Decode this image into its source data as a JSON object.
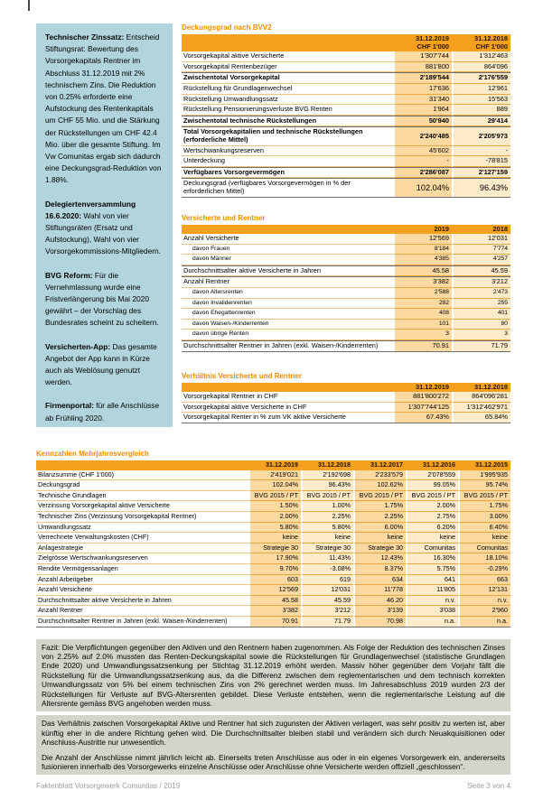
{
  "page": {
    "footer_left": "Faktenblatt Vorsorgewerk Comunitas / 2019",
    "footer_right": "Seite 3 von 4"
  },
  "colors": {
    "accent_orange": "#f08c00",
    "table_header_band": "#f5a01e",
    "value_column_strong": "#fbd9a1",
    "value_column_light": "#fdebca",
    "sidebar_blue": "#b2d5dd",
    "fazit_gray": "#d5d4ca",
    "footer_gray": "#9c9c96"
  },
  "sidebar": {
    "paragraphs": [
      {
        "bold": "Technischer Zinssatz:",
        "text": " Entscheid Stiftungsrat: Bewertung des Vorsorgekapitals Rentner im Abschluss 31.12.2019 mit 2% technischem Zins. Die Reduktion von 0.25% erforderte eine Aufstockung des Rentenkapitals um CHF 55 Mio. und die Stärkung der Rückstellungen um CHF 42.4 Mio. über die gesamte Stiftung. Im Vw Comunitas ergab sich dadurch eine Deckungsgrad-Reduktion von 1.88%."
      },
      {
        "bold": "Delegiertenversammlung 16.6.2020:",
        "text": " Wahl von vier Stiftungsräten (Ersatz und Aufstockung), Wahl von vier Vorsorgekommissions-Mitgliedern."
      },
      {
        "bold": "BVG Reform:",
        "text": " Für die Vernehmlassung wurde eine Fristverlängerung bis Mai 2020 gewährt – der Vorschlag des Bundesrates scheint zu scheitern."
      },
      {
        "bold": "Versicherten-App:",
        "text": " Das gesamte Angebot der App kann in Kürze auch als Weblösung genutzt werden."
      },
      {
        "bold": "Firmenportal:",
        "text": " für alle Anschlüsse ab Frühling 2020."
      }
    ]
  },
  "tables": [
    {
      "title": "Deckungsgrad nach BVV2",
      "col_headers": [
        [
          "31.12.2019",
          "CHF 1'000"
        ],
        [
          "31.12.2018",
          "CHF 1'000"
        ]
      ],
      "rows": [
        {
          "label": "Vorsorgekapital aktive Versicherte",
          "values": [
            "1'307'744",
            "1'312'463"
          ],
          "style": ""
        },
        {
          "label": "Vorsorgekapital Rentenbezüger",
          "values": [
            "881'800",
            "864'096"
          ],
          "style": ""
        },
        {
          "label": "Zwischentotal Vorsorgekapital",
          "values": [
            "2'189'544",
            "2'176'559"
          ],
          "style": "b t"
        },
        {
          "label": "Rückstellung für Grundlagenwechsel",
          "values": [
            "17'636",
            "12'961"
          ],
          "style": ""
        },
        {
          "label": "Rückstellung Umwandlungssatz",
          "values": [
            "31'340",
            "15'563"
          ],
          "style": ""
        },
        {
          "label": "Rückstellung Pensionierungsverluste BVG Renten",
          "values": [
            "1'964",
            "889"
          ],
          "style": ""
        },
        {
          "label": "Zwischentotal technische Rückstellungen",
          "values": [
            "50'940",
            "29'414"
          ],
          "style": "b t"
        },
        {
          "label": "Total Vorsorgekapitalien und technische Rückstellungen (erforderliche Mittel)",
          "values": [
            "2'240'485",
            "2'205'973"
          ],
          "style": "b t"
        },
        {
          "label": "Wertschwankungsreserven",
          "values": [
            "45'602",
            "-"
          ],
          "style": ""
        },
        {
          "label": "Unterdeckung",
          "values": [
            "-",
            "-78'815"
          ],
          "style": ""
        },
        {
          "label": "Verfügbares Vorsorgevermögen",
          "values": [
            "2'286'087",
            "2'127'159"
          ],
          "style": "b t"
        },
        {
          "label": "Deckungsgrad (verfügbares Vorsorgevermögen in % der erforderlichen Mittel)",
          "values": [
            "102.04%",
            "96.43%"
          ],
          "style": "big t u"
        }
      ]
    },
    {
      "title": "Versicherte und Rentner",
      "col_headers": [
        "2019",
        "2018"
      ],
      "rows": [
        {
          "label": "Anzahl Versicherte",
          "values": [
            "12'569",
            "12'031"
          ],
          "style": ""
        },
        {
          "label": "davon Frauen",
          "values": [
            "8'184",
            "7'774"
          ],
          "style": "s"
        },
        {
          "label": "davon Männer",
          "values": [
            "4'385",
            "4'257"
          ],
          "style": "s"
        },
        {
          "label": "Durchschnittsalter aktive Versicherte in Jahren",
          "values": [
            "45.58",
            "45.59"
          ],
          "style": "t"
        },
        {
          "label": "Anzahl Rentner",
          "values": [
            "3'382",
            "3'212"
          ],
          "style": "t"
        },
        {
          "label": "davon Altersrenten",
          "values": [
            "2'588",
            "2'473"
          ],
          "style": "s"
        },
        {
          "label": "davon Invalidenrenten",
          "values": [
            "282",
            "255"
          ],
          "style": "s"
        },
        {
          "label": "davon Ehegattenrenten",
          "values": [
            "408",
            "401"
          ],
          "style": "s"
        },
        {
          "label": "davon Waisen-/Kinderrenten",
          "values": [
            "101",
            "80"
          ],
          "style": "s"
        },
        {
          "label": "davon übrige Renten",
          "values": [
            "3",
            "3"
          ],
          "style": "s"
        },
        {
          "label": "Durchschnittsalter Rentner in Jahren (exkl. Waisen-/Kinderrenten)",
          "values": [
            "70.91",
            "71.79"
          ],
          "style": "t u"
        }
      ]
    },
    {
      "title": "Verhältnis Versicherte und Rentner",
      "col_headers": [
        "31.12.2019",
        "31.12.2018"
      ],
      "rows": [
        {
          "label": "Vorsorgekapital Rentner in CHF",
          "values": [
            "881'800'272",
            "864'096'281"
          ],
          "style": ""
        },
        {
          "label": "Vorsorgekapital aktive Versicherte in CHF",
          "values": [
            "1'307'744'125",
            "1'312'462'971"
          ],
          "style": ""
        },
        {
          "label": "Vorsorgekapital Renter in % zum VK aktive Versicherte",
          "values": [
            "67.43%",
            "65.84%"
          ],
          "style": "u"
        }
      ]
    },
    {
      "title": "Kennzahlen Mehrjahresvergleich",
      "col_headers": [
        "31.12.2019",
        "31.12.2018",
        "31.12.2017",
        "31.12.2016",
        "31.12.2015"
      ],
      "rows": [
        {
          "label": "Bilanzsumme (CHF 1'000)",
          "values": [
            "2'419'021",
            "2'192'698",
            "2'233'579",
            "2'078'559",
            "1'995'935"
          ],
          "style": ""
        },
        {
          "label": "Deckungsgrad",
          "values": [
            "102.04%",
            "96.43%",
            "102.62%",
            "99.05%",
            "95.74%"
          ],
          "style": ""
        },
        {
          "label": "Technische Grundlagen",
          "values": [
            "BVG 2015 / PT",
            "BVG 2015 / PT",
            "BVG 2015 / PT",
            "BVG 2015 / PT",
            "BVG 2015 / PT"
          ],
          "style": ""
        },
        {
          "label": "Verzinsung Vorsorgekapital aktive Versicherte",
          "values": [
            "1.50%",
            "1.00%",
            "1.75%",
            "2.00%",
            "1.75%"
          ],
          "style": ""
        },
        {
          "label": "Technischer Zins (Verzinsung Vorsorgekapital Rentner)",
          "values": [
            "2.00%",
            "2.25%",
            "2.25%",
            "2.75%",
            "3.00%"
          ],
          "style": ""
        },
        {
          "label": "Umwandlungssatz",
          "values": [
            "5.80%",
            "5.80%",
            "6.00%",
            "6.20%",
            "6.40%"
          ],
          "style": ""
        },
        {
          "label": "Verrechnete Verwaltungskosten (CHF)",
          "values": [
            "keine",
            "keine",
            "keine",
            "keine",
            "keine"
          ],
          "style": ""
        },
        {
          "label": "Anlagestrategie",
          "values": [
            "Strategie 30",
            "Strategie 30",
            "Strategie 30",
            "Comunitas",
            "Comunitas"
          ],
          "style": ""
        },
        {
          "label": "Zielgrösse Wertschwankungsreserven",
          "values": [
            "17.90%",
            "11.43%",
            "12.43%",
            "16.30%",
            "18.10%"
          ],
          "style": ""
        },
        {
          "label": "Rendite Vermögensanlagen",
          "values": [
            "9.70%",
            "-3.08%",
            "8.37%",
            "5.75%",
            "-0.29%"
          ],
          "style": ""
        },
        {
          "label": "Anzahl Arbeitgeber",
          "values": [
            "603",
            "619",
            "634",
            "641",
            "663"
          ],
          "style": ""
        },
        {
          "label": "Anzahl Versicherte",
          "values": [
            "12'569",
            "12'031",
            "11'778",
            "11'805",
            "12'131"
          ],
          "style": ""
        },
        {
          "label": "Durchschnittsalter aktive Versicherte in Jahren",
          "values": [
            "45.58",
            "45.59",
            "46.20",
            "n.v.",
            "n.v."
          ],
          "style": ""
        },
        {
          "label": "Anzahl Rentner",
          "values": [
            "3'382",
            "3'212",
            "3'139",
            "3'038",
            "2'960"
          ],
          "style": ""
        },
        {
          "label": "Durchschnittsalter Rentner in Jahren (exkl. Waisen-/Kinderrenten)",
          "values": [
            "70.91",
            "71.79",
            "70.98",
            "n.a.",
            "n.a."
          ],
          "style": "u"
        }
      ]
    }
  ],
  "fazit": {
    "blocks": [
      [
        "Fazit: Die Verpflichtungen gegenüber den Aktiven und den Rentnern haben zugenommen. Als Folge der Reduktion des technischen Zinses von 2.25% auf 2.0% mussten das Renten-Deckungskapital sowie die Rückstellungen für Grundlagenwechsel (statistische Grundlagen Ende 2020) und Umwandlungssatzsenkung per Stichtag 31.12.2019 erhöht werden. Massiv höher gegenüber dem Vorjahr fällt die Rückstellung für die Umwandlungssatzsenkung aus, da die Differenz zwischen dem reglementarischen und dem technisch korrekten Umwandlungssatz von 5% bei einem technischen Zins von 2% gerechnet werden muss. Im Jahresabschluss 2019 wurden 2/3 der Rückstellungen für Verluste auf BVG-Altersrenten gebildet. Diese Verluste entstehen, wenn die reglementarische Leistung auf die Altersrente gemäss BVG angehoben werden muss."
      ],
      [
        "Das Verhältnis zwischen Vorsorgekapital Aktive und Rentner hat sich zugunsten der Aktiven verlagert, was sehr positiv zu werten ist, aber künftig eher in die andere Richtung gehen wird. Die Durchschnittsalter bleiben stabil und verändern sich durch Neuakquisitionen oder Anschluss-Austritte nur unwesentlich.",
        "Die Anzahl der Anschlüsse nimmt jährlich leicht ab. Einerseits treten Anschlüsse aus oder in ein eigenes Vorsorgewerk ein, andererseits fusionieren innerhalb des Vorsorgewerks einzelne Anschlüsse oder Anschlüsse ohne Versicherte werden offiziell „geschlossen“."
      ]
    ]
  }
}
